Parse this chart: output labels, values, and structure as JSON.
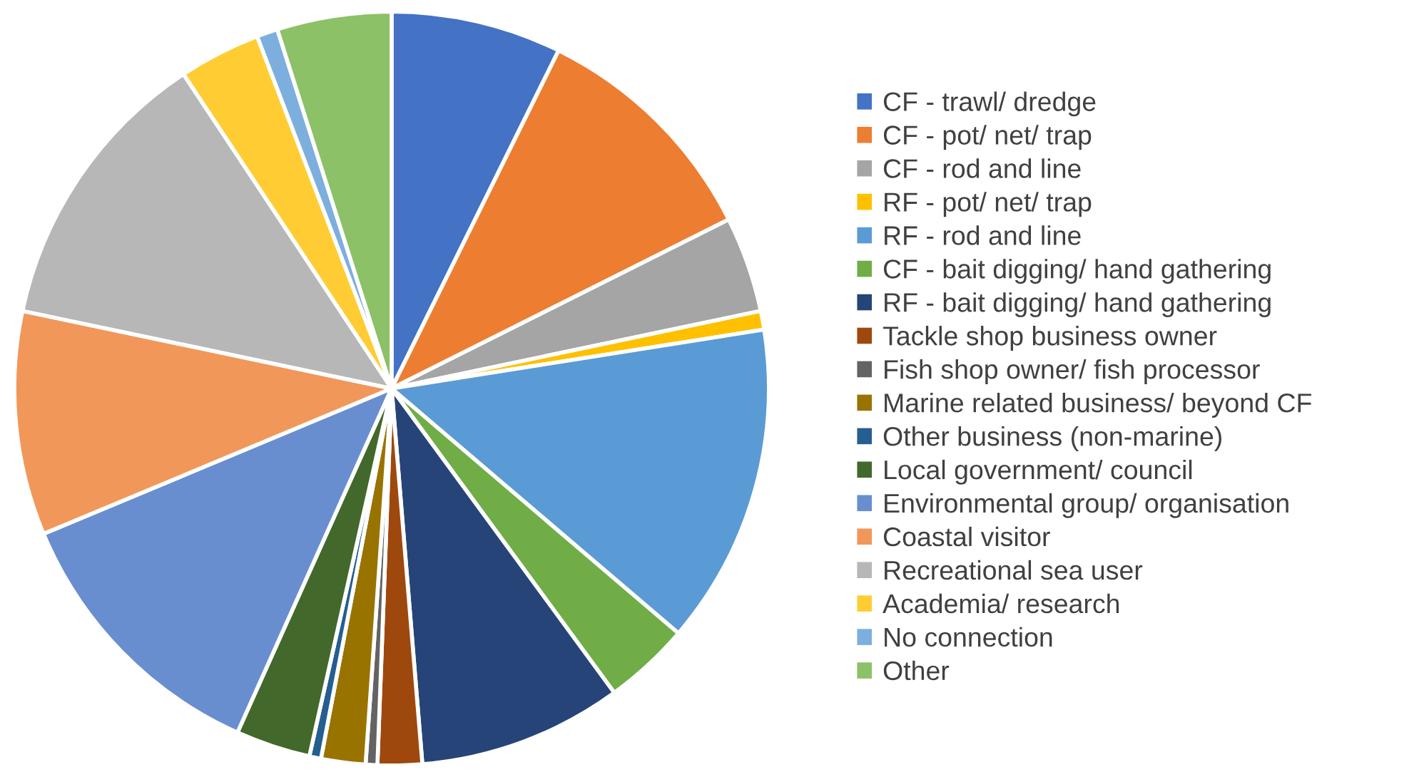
{
  "chart_data": {
    "type": "pie",
    "categories": [
      "CF - trawl/ dredge",
      "CF - pot/ net/ trap",
      "CF - rod and line",
      "RF - pot/ net/ trap",
      "RF - rod and line",
      "CF - bait digging/ hand gathering",
      "RF - bait digging/ hand gathering",
      "Tackle shop business owner",
      "Fish shop owner/ fish processor",
      "Marine related business/ beyond CF",
      "Other business (non-marine)",
      "Local government/ council",
      "Environmental group/ organisation",
      "Coastal visitor",
      "Recreational sea user",
      "Academia/ research",
      "No connection",
      "Other"
    ],
    "values": [
      7.3,
      10.3,
      4.1,
      0.8,
      13.75,
      3.7,
      8.75,
      1.9,
      0.5,
      1.9,
      0.5,
      3.2,
      12.0,
      9.6,
      12.4,
      3.5,
      0.9,
      4.9
    ],
    "colors": [
      "#4472c4",
      "#ed7d31",
      "#a5a5a5",
      "#ffc000",
      "#5b9bd5",
      "#70ad47",
      "#264478",
      "#9e480e",
      "#636363",
      "#997300",
      "#255e91",
      "#43682b",
      "#698ed0",
      "#f1975a",
      "#b7b7b7",
      "#ffcd33",
      "#7cafdd",
      "#8cc168"
    ],
    "legend": "right"
  }
}
